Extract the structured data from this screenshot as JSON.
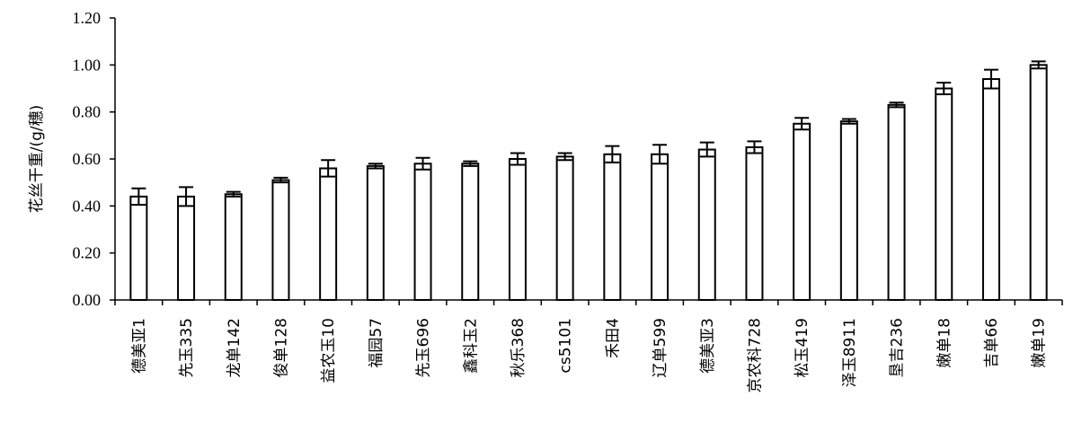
{
  "chart_data": {
    "type": "bar",
    "ylabel": "花丝干重/(g/穗)",
    "xlabel": "",
    "title": "",
    "ylim": [
      0,
      1.2
    ],
    "yticks": [
      "0.00",
      "0.20",
      "0.40",
      "0.60",
      "0.80",
      "1.00",
      "1.20"
    ],
    "grid": false,
    "categories": [
      "德美亚1",
      "先玉335",
      "龙单142",
      "俊单128",
      "益农玉10",
      "福园57",
      "先玉696",
      "鑫科玉2",
      "秋乐368",
      "cs5101",
      "禾田4",
      "辽单599",
      "德美亚3",
      "京农科728",
      "松玉419",
      "泽玉8911",
      "垦吉236",
      "嫩单18",
      "吉单66",
      "嫩单19"
    ],
    "values": [
      0.44,
      0.44,
      0.45,
      0.51,
      0.56,
      0.57,
      0.58,
      0.58,
      0.6,
      0.61,
      0.62,
      0.62,
      0.64,
      0.65,
      0.75,
      0.76,
      0.83,
      0.9,
      0.94,
      1.0
    ],
    "errors": [
      0.035,
      0.04,
      0.01,
      0.01,
      0.035,
      0.01,
      0.025,
      0.01,
      0.025,
      0.015,
      0.035,
      0.04,
      0.03,
      0.025,
      0.025,
      0.01,
      0.01,
      0.025,
      0.04,
      0.015
    ]
  }
}
